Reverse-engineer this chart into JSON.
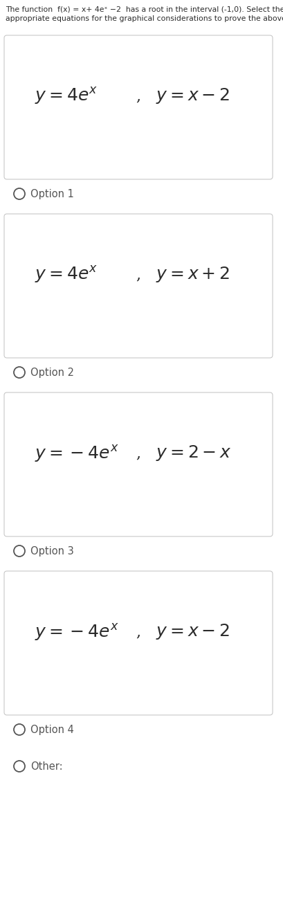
{
  "title_line1": "The function  $f(x) = x + 4e^x - 2$  has a root in the interval (-1,0). Select the",
  "title_line2": "appropriate equations for the graphical considerations to prove the above statement",
  "options": [
    {
      "box_eq1": "$y = 4e^{x}$",
      "box_eq2": "$y = x-2$",
      "label": "Option 1"
    },
    {
      "box_eq1": "$y = 4e^{x}$",
      "box_eq2": "$y = x+2$",
      "label": "Option 2"
    },
    {
      "box_eq1": "$y = -4e^{x}$",
      "box_eq2": "$y = 2-x$",
      "label": "Option 3"
    },
    {
      "box_eq1": "$y = -4e^{x}$",
      "box_eq2": "$y = x-2$",
      "label": "Option 4"
    }
  ],
  "extra_label": "Other:",
  "bg_color": "#ffffff",
  "box_bg": "#ffffff",
  "box_border": "#c8c8c8",
  "text_color": "#2b2b2b",
  "label_color": "#555555",
  "eq_fontsize": 18,
  "label_fontsize": 10.5,
  "title_fontsize": 7.8,
  "title_text_line1": "The function  f(x) = x+ 4eˣ −2  has a root in the interval (-1,0). Select the",
  "title_text_line2": "appropriate equations for the graphical considerations to prove the above statement"
}
